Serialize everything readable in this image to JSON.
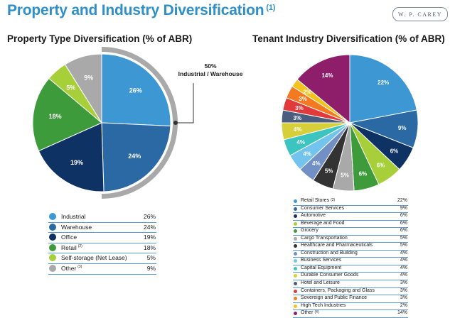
{
  "header": {
    "title": "Property and Industry Diversification",
    "footnote": "(1)",
    "logo": "W. P. CAREY"
  },
  "chart_data": [
    {
      "type": "pie",
      "title": "Property Type Diversification (% of ABR)",
      "unit": "%",
      "slices": [
        {
          "label": "Industrial",
          "value": 26,
          "color": "#3c97d3"
        },
        {
          "label": "Warehouse",
          "value": 24,
          "color": "#2a69a4"
        },
        {
          "label": "Office",
          "value": 19,
          "color": "#0f3264"
        },
        {
          "label": "Retail",
          "note": "(2)",
          "value": 18,
          "color": "#3e9b3c"
        },
        {
          "label": "Self-storage (Net Lease)",
          "value": 5,
          "color": "#a6cf3a"
        },
        {
          "label": "Other",
          "note": "(3)",
          "value": 9,
          "color": "#a9a9a9"
        }
      ],
      "annotation": {
        "value": "50%",
        "label": "Industrial / Warehouse"
      }
    },
    {
      "type": "pie",
      "title": "Tenant Industry Diversification (% of ABR)",
      "unit": "%",
      "slices": [
        {
          "label": "Retail Stores",
          "note": "(2)",
          "value": 22,
          "color": "#3c97d3"
        },
        {
          "label": "Consumer Services",
          "value": 9,
          "color": "#2a69a4"
        },
        {
          "label": "Automotive",
          "value": 6,
          "color": "#0f3264"
        },
        {
          "label": "Beverage and Food",
          "value": 6,
          "color": "#a6cf3a"
        },
        {
          "label": "Grocery",
          "value": 6,
          "color": "#3e9b3c"
        },
        {
          "label": "Cargo Transportation",
          "value": 5,
          "color": "#a9a9a9"
        },
        {
          "label": "Healthcare and Pharmaceuticals",
          "value": 5,
          "color": "#333333"
        },
        {
          "label": "Construction and Building",
          "value": 4,
          "color": "#7290c4"
        },
        {
          "label": "Business Services",
          "value": 4,
          "color": "#72c4ee"
        },
        {
          "label": "Capital Equipment",
          "value": 4,
          "color": "#3cc4c0"
        },
        {
          "label": "Durable Consumer Goods",
          "value": 4,
          "color": "#d6cf3a"
        },
        {
          "label": "Hotel and Leisure",
          "value": 3,
          "color": "#4a5d7e"
        },
        {
          "label": "Containers, Packaging and Glass",
          "value": 3,
          "color": "#e23a3a"
        },
        {
          "label": "Sovereign and Public Finance",
          "value": 3,
          "color": "#f47a22"
        },
        {
          "label": "High Tech Industries",
          "value": 2,
          "color": "#f4c21c"
        },
        {
          "label": "Other",
          "note": "(4)",
          "value": 14,
          "color": "#8e1d6a"
        }
      ]
    }
  ]
}
